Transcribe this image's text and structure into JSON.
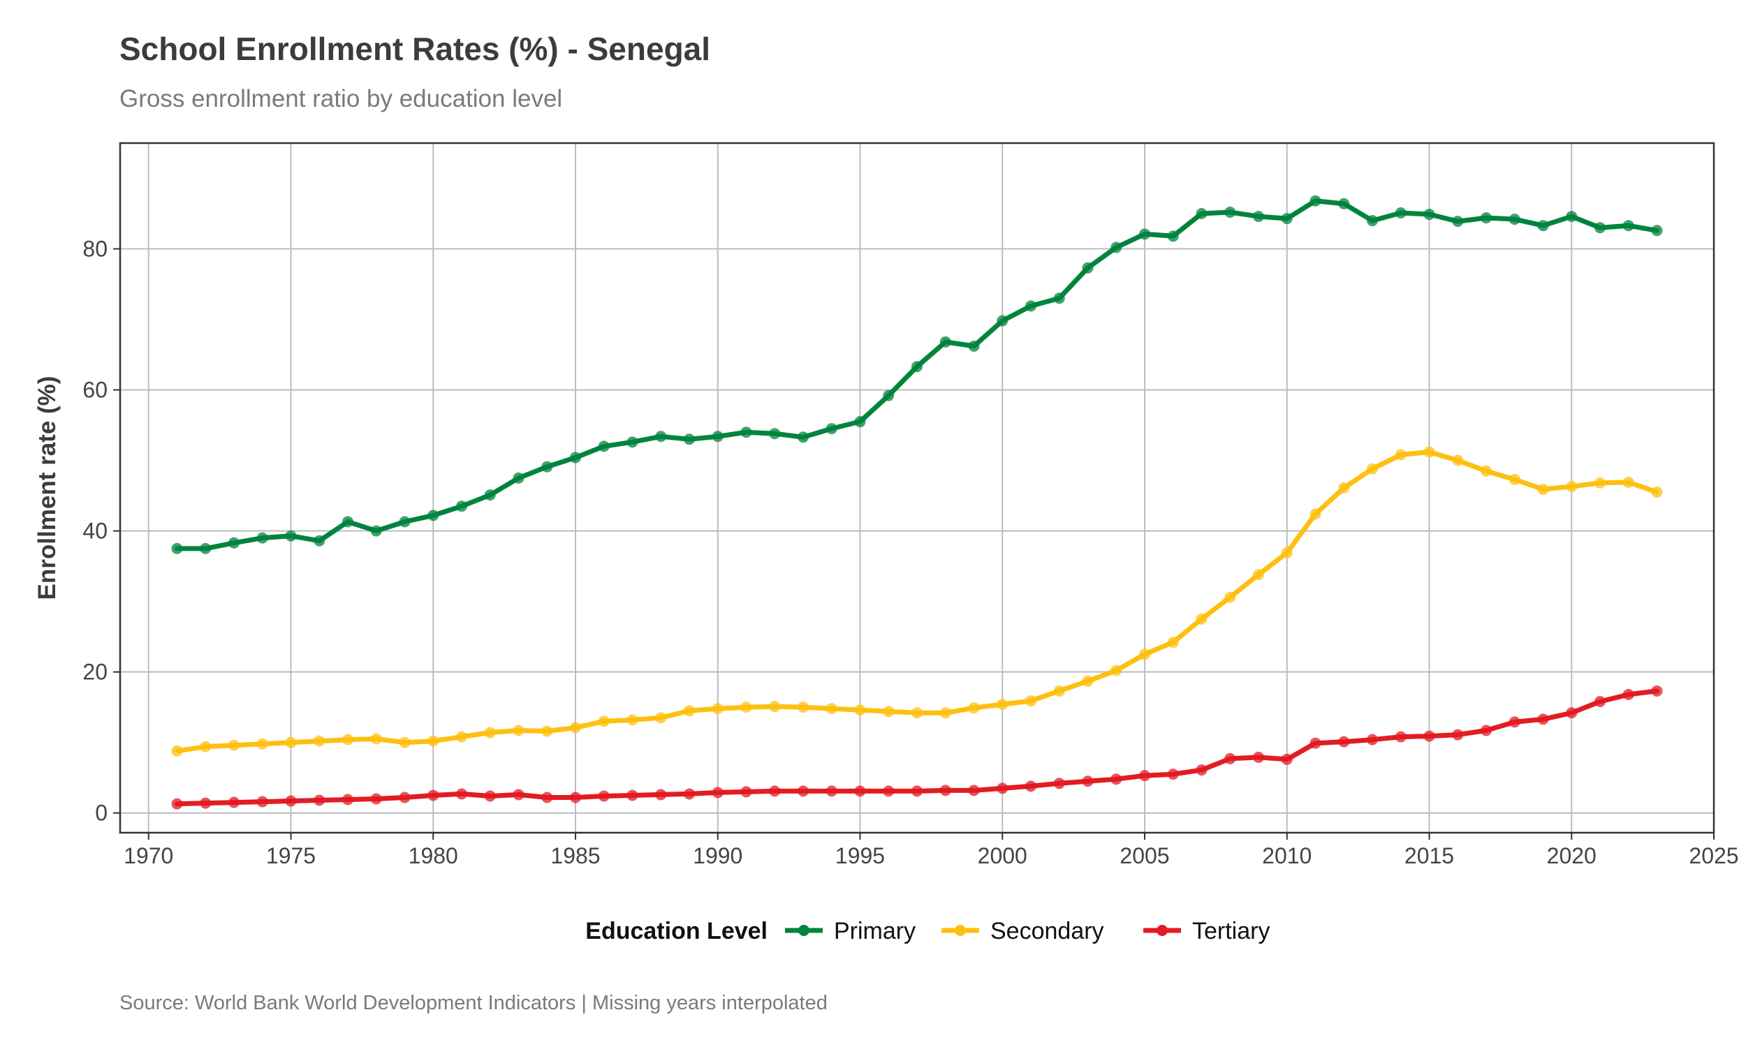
{
  "chart_data": {
    "type": "line",
    "title": "School Enrollment Rates (%) - Senegal",
    "subtitle": "Gross enrollment ratio by education level",
    "xlabel": "",
    "ylabel": "Enrollment rate (%)",
    "caption": "Source: World Bank World Development Indicators | Missing years interpolated",
    "xlim": [
      1969,
      2025
    ],
    "ylim": [
      -2.8,
      95
    ],
    "x_ticks": [
      1970,
      1975,
      1980,
      1985,
      1990,
      1995,
      2000,
      2005,
      2010,
      2015,
      2020,
      2025
    ],
    "y_ticks": [
      0,
      20,
      40,
      60,
      80
    ],
    "grid": true,
    "legend": {
      "title": "Education Level",
      "position": "bottom"
    },
    "x": [
      1971,
      1972,
      1973,
      1974,
      1975,
      1976,
      1977,
      1978,
      1979,
      1980,
      1981,
      1982,
      1983,
      1984,
      1985,
      1986,
      1987,
      1988,
      1989,
      1990,
      1991,
      1992,
      1993,
      1994,
      1995,
      1996,
      1997,
      1998,
      1999,
      2000,
      2001,
      2002,
      2003,
      2004,
      2005,
      2006,
      2007,
      2008,
      2009,
      2010,
      2011,
      2012,
      2013,
      2014,
      2015,
      2016,
      2017,
      2018,
      2019,
      2020,
      2021,
      2022,
      2023
    ],
    "series": [
      {
        "name": "Primary",
        "color": "#00843d",
        "values": [
          37.5,
          37.5,
          38.3,
          39.0,
          39.3,
          38.6,
          41.3,
          40.0,
          41.3,
          42.2,
          43.5,
          45.1,
          47.5,
          49.1,
          50.4,
          52.0,
          52.6,
          53.4,
          53.0,
          53.4,
          54.0,
          53.8,
          53.3,
          54.5,
          55.5,
          59.2,
          63.3,
          66.8,
          66.2,
          69.8,
          71.9,
          73.0,
          77.3,
          80.2,
          82.1,
          81.8,
          85.0,
          85.2,
          84.6,
          84.3,
          86.8,
          86.4,
          84.0,
          85.1,
          84.9,
          83.9,
          84.4,
          84.2,
          83.3,
          84.6,
          83.0,
          83.3,
          82.6
        ]
      },
      {
        "name": "Secondary",
        "color": "#fdc010",
        "values": [
          8.8,
          9.4,
          9.6,
          9.8,
          10.0,
          10.2,
          10.4,
          10.5,
          10.0,
          10.2,
          10.8,
          11.4,
          11.7,
          11.6,
          12.1,
          13.0,
          13.2,
          13.5,
          14.5,
          14.8,
          15.0,
          15.1,
          15.0,
          14.8,
          14.6,
          14.4,
          14.2,
          14.2,
          14.9,
          15.4,
          15.9,
          17.3,
          18.7,
          20.2,
          22.5,
          24.2,
          27.5,
          30.6,
          33.8,
          36.9,
          42.4,
          46.1,
          48.8,
          50.8,
          51.2,
          50.0,
          48.5,
          47.3,
          45.9,
          46.3,
          46.8,
          46.9,
          45.5
        ]
      },
      {
        "name": "Tertiary",
        "color": "#e31b23",
        "values": [
          1.3,
          1.4,
          1.5,
          1.6,
          1.7,
          1.8,
          1.9,
          2.0,
          2.2,
          2.5,
          2.7,
          2.4,
          2.6,
          2.2,
          2.2,
          2.4,
          2.5,
          2.6,
          2.7,
          2.9,
          3.0,
          3.1,
          3.1,
          3.1,
          3.1,
          3.1,
          3.1,
          3.2,
          3.2,
          3.5,
          3.8,
          4.2,
          4.5,
          4.8,
          5.3,
          5.5,
          6.1,
          7.7,
          7.9,
          7.6,
          9.9,
          10.1,
          10.4,
          10.8,
          10.9,
          11.1,
          11.7,
          12.9,
          13.3,
          14.2,
          15.8,
          16.8,
          17.3
        ]
      }
    ]
  }
}
